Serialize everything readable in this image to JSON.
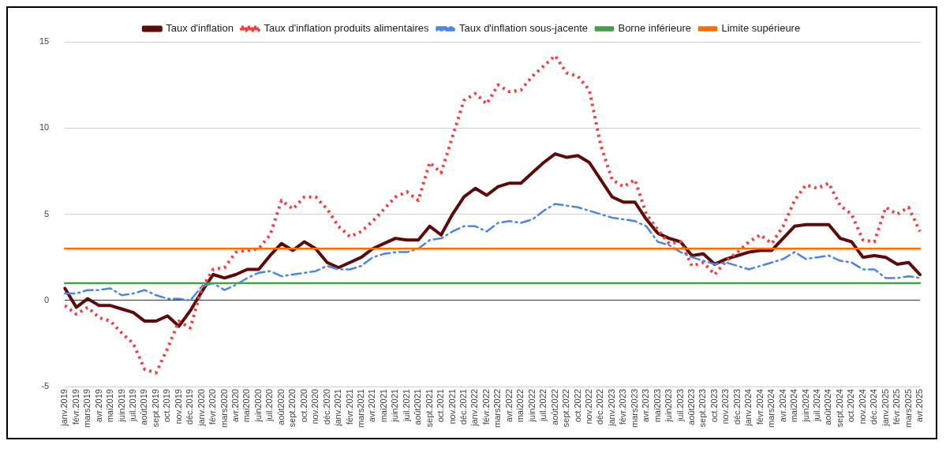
{
  "chart_data": {
    "type": "line",
    "categories": [
      "janv.2019",
      "févr.2019",
      "mars2019",
      "avr.2019",
      "mai2019",
      "juin2019",
      "juil.2019",
      "août2019",
      "sept.2019",
      "oct.2019",
      "nov.2019",
      "déc.2019",
      "janv.2020",
      "févr.2020",
      "mars2020",
      "avr.2020",
      "mai2020",
      "juin2020",
      "juil.2020",
      "août2020",
      "sept.2020",
      "oct.2020",
      "nov.2020",
      "déc.2020",
      "janv.2021",
      "févr.2021",
      "mars2021",
      "avr.2021",
      "mai2021",
      "juin2021",
      "juil.2021",
      "août2021",
      "sept.2021",
      "oct.2021",
      "nov.2021",
      "déc.2021",
      "janv.2022",
      "févr.2022",
      "mars2022",
      "avr.2022",
      "mai2022",
      "juin2022",
      "juil.2022",
      "août2022",
      "sept.2022",
      "oct.2022",
      "nov.2022",
      "déc.2022",
      "janv.2023",
      "févr.2023",
      "mars2023",
      "avr.2023",
      "mai2023",
      "juin2023",
      "juil.2023",
      "août2023",
      "sept.2023",
      "oct.2023",
      "nov.2023",
      "déc.2023",
      "janv.2024",
      "févr.2024",
      "mars2024",
      "avr.2024",
      "mai2024",
      "juin2024",
      "juil.2024",
      "août2024",
      "sept.2024",
      "oct.2024",
      "nov.2024",
      "déc.2024",
      "janv.2025",
      "févr.2025",
      "mars2025",
      "avr.2025"
    ],
    "series": [
      {
        "name": "Taux d'inflation",
        "color": "#5c0a0a",
        "line_style": "solid",
        "values": [
          0.7,
          -0.4,
          0.1,
          -0.3,
          -0.3,
          -0.5,
          -0.7,
          -1.2,
          -1.2,
          -0.9,
          -1.5,
          -0.6,
          0.5,
          1.5,
          1.3,
          1.5,
          1.8,
          1.8,
          2.6,
          3.3,
          2.9,
          3.4,
          3.0,
          2.2,
          1.9,
          2.2,
          2.5,
          3.0,
          3.3,
          3.6,
          3.5,
          3.5,
          4.3,
          3.8,
          5.0,
          6.0,
          6.5,
          6.1,
          6.6,
          6.8,
          6.8,
          7.4,
          8.0,
          8.5,
          8.3,
          8.4,
          8.0,
          7.0,
          6.0,
          5.7,
          5.7,
          4.7,
          3.9,
          3.6,
          3.4,
          2.6,
          2.7,
          2.1,
          2.4,
          2.6,
          2.8,
          2.9,
          2.9,
          3.6,
          4.3,
          4.4,
          4.4,
          4.4,
          3.6,
          3.4,
          2.5,
          2.6,
          2.5,
          2.1,
          2.2,
          1.5
        ]
      },
      {
        "name": "Taux d'inflation produits alimentaires",
        "color": "#e84545",
        "line_style": "dotted",
        "values": [
          -0.3,
          -0.8,
          -0.4,
          -1.0,
          -1.2,
          -1.9,
          -2.5,
          -4.0,
          -4.2,
          -2.8,
          -1.2,
          -1.6,
          0.7,
          1.8,
          1.9,
          2.8,
          2.9,
          3.0,
          3.8,
          5.8,
          5.3,
          6.0,
          6.0,
          5.3,
          4.3,
          3.7,
          4.0,
          4.6,
          5.3,
          6.0,
          6.3,
          5.8,
          8.0,
          7.4,
          9.5,
          11.6,
          12.0,
          11.4,
          12.5,
          12.1,
          12.2,
          13.0,
          13.6,
          14.2,
          13.2,
          13.0,
          12.2,
          9.0,
          7.0,
          6.6,
          7.0,
          5.0,
          4.1,
          3.3,
          3.4,
          2.0,
          2.2,
          1.5,
          2.3,
          2.8,
          3.4,
          3.8,
          3.3,
          4.3,
          5.8,
          6.7,
          6.5,
          6.8,
          5.5,
          5.0,
          3.5,
          3.4,
          5.4,
          5.0,
          5.4,
          4.0
        ]
      },
      {
        "name": "Taux d'inflation sous-jacente",
        "color": "#4a86e8",
        "line_style": "dashed",
        "values": [
          0.4,
          0.4,
          0.6,
          0.6,
          0.7,
          0.3,
          0.4,
          0.6,
          0.3,
          0.1,
          0.1,
          0.0,
          0.8,
          1.0,
          0.6,
          0.9,
          1.3,
          1.6,
          1.7,
          1.4,
          1.5,
          1.6,
          1.7,
          2.0,
          1.8,
          1.8,
          2.0,
          2.5,
          2.7,
          2.8,
          2.8,
          3.0,
          3.5,
          3.6,
          4.0,
          4.3,
          4.3,
          4.0,
          4.5,
          4.6,
          4.5,
          4.7,
          5.2,
          5.6,
          5.5,
          5.4,
          5.2,
          5.0,
          4.8,
          4.7,
          4.6,
          4.3,
          3.4,
          3.2,
          2.8,
          2.5,
          2.3,
          2.1,
          2.2,
          2.0,
          1.8,
          2.0,
          2.2,
          2.4,
          2.8,
          2.4,
          2.5,
          2.6,
          2.3,
          2.2,
          1.8,
          1.8,
          1.3,
          1.3,
          1.4,
          1.3
        ]
      },
      {
        "name": "Borne inférieure",
        "color": "#43a047",
        "line_style": "solid",
        "values": [
          1,
          1,
          1,
          1,
          1,
          1,
          1,
          1,
          1,
          1,
          1,
          1,
          1,
          1,
          1,
          1,
          1,
          1,
          1,
          1,
          1,
          1,
          1,
          1,
          1,
          1,
          1,
          1,
          1,
          1,
          1,
          1,
          1,
          1,
          1,
          1,
          1,
          1,
          1,
          1,
          1,
          1,
          1,
          1,
          1,
          1,
          1,
          1,
          1,
          1,
          1,
          1,
          1,
          1,
          1,
          1,
          1,
          1,
          1,
          1,
          1,
          1,
          1,
          1,
          1,
          1,
          1,
          1,
          1,
          1,
          1,
          1,
          1,
          1,
          1,
          1
        ]
      },
      {
        "name": "Limite supérieure",
        "color": "#ff6d00",
        "line_style": "solid",
        "values": [
          3,
          3,
          3,
          3,
          3,
          3,
          3,
          3,
          3,
          3,
          3,
          3,
          3,
          3,
          3,
          3,
          3,
          3,
          3,
          3,
          3,
          3,
          3,
          3,
          3,
          3,
          3,
          3,
          3,
          3,
          3,
          3,
          3,
          3,
          3,
          3,
          3,
          3,
          3,
          3,
          3,
          3,
          3,
          3,
          3,
          3,
          3,
          3,
          3,
          3,
          3,
          3,
          3,
          3,
          3,
          3,
          3,
          3,
          3,
          3,
          3,
          3,
          3,
          3,
          3,
          3,
          3,
          3,
          3,
          3,
          3,
          3,
          3,
          3,
          3,
          3
        ]
      }
    ],
    "ylim": [
      -5,
      15
    ],
    "yticks": [
      -5,
      0,
      5,
      10,
      15
    ],
    "grid": "y",
    "legend": "top",
    "marker": "none"
  }
}
